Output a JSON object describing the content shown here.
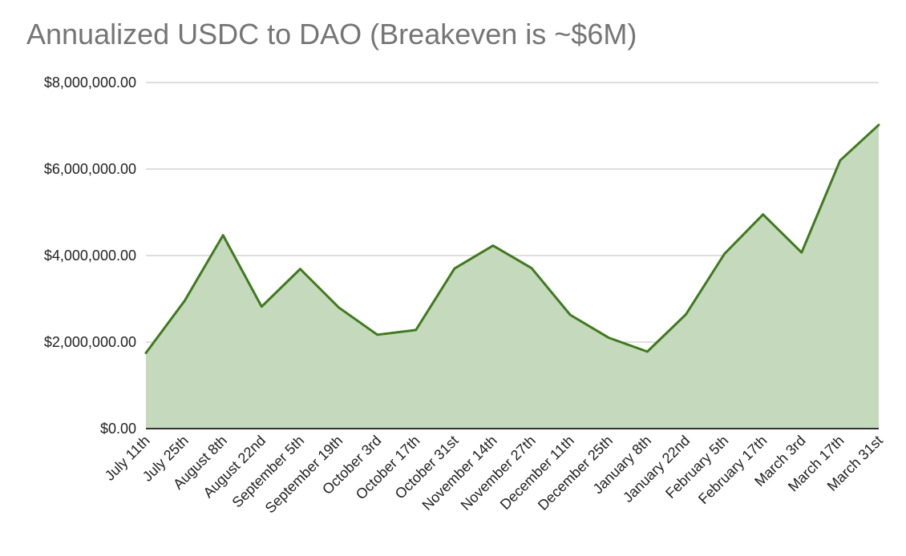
{
  "chart_data": {
    "type": "area",
    "title": "Annualized USDC to DAO (Breakeven is ~$6M)",
    "xlabel": "",
    "ylabel": "",
    "categories": [
      "July 11th",
      "July 25th",
      "August 8th",
      "August 22nd",
      "September 5th",
      "September 19th",
      "October 3rd",
      "October 17th",
      "October 31st",
      "November 14th",
      "November 27th",
      "December 11th",
      "December 25th",
      "January 8th",
      "January 22nd",
      "February 5th",
      "February 17th",
      "March 3rd",
      "March 17th",
      "March 31st"
    ],
    "series": [
      {
        "values": [
          1750000,
          2950000,
          4470000,
          2820000,
          3690000,
          2800000,
          2170000,
          2280000,
          3700000,
          4230000,
          3710000,
          2630000,
          2100000,
          1780000,
          2640000,
          4040000,
          4950000,
          4070000,
          6200000,
          7020000
        ]
      }
    ],
    "ylim": [
      0,
      8000000
    ],
    "yticks": [
      0,
      2000000,
      4000000,
      6000000,
      8000000
    ],
    "ytick_labels": [
      "$0.00",
      "$2,000,000.00",
      "$4,000,000.00",
      "$6,000,000.00",
      "$8,000,000.00"
    ],
    "grid": true,
    "legend": "none",
    "colors": {
      "line": "#3f7a1e",
      "fill": "#c5d9bd",
      "grid": "#d4d4d4",
      "axis": "#333333",
      "title": "#757575"
    }
  }
}
